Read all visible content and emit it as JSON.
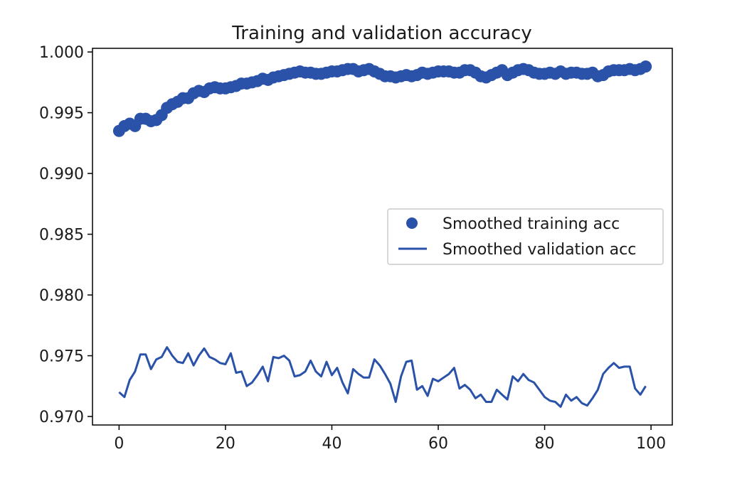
{
  "chart_data": {
    "type": "line",
    "title": "Training and validation accuracy",
    "xlabel": "",
    "ylabel": "",
    "xlim": [
      -5,
      104
    ],
    "ylim": [
      0.9693,
      1.0003
    ],
    "xticks": [
      0,
      20,
      40,
      60,
      80,
      100
    ],
    "xtick_labels": [
      "0",
      "20",
      "40",
      "60",
      "80",
      "100"
    ],
    "yticks": [
      0.97,
      0.975,
      0.98,
      0.985,
      0.99,
      0.995,
      1.0
    ],
    "ytick_labels": [
      "0.970",
      "0.975",
      "0.980",
      "0.985",
      "0.990",
      "0.995",
      "1.000"
    ],
    "grid": false,
    "legend_position": "center-right",
    "color": "#2a52a8",
    "series": [
      {
        "name": "Smoothed training acc",
        "style": "markers",
        "values": [
          0.9935,
          0.9939,
          0.9941,
          0.9939,
          0.9945,
          0.9945,
          0.9943,
          0.9944,
          0.9948,
          0.9954,
          0.9957,
          0.9959,
          0.9962,
          0.9962,
          0.9966,
          0.9968,
          0.9967,
          0.997,
          0.9971,
          0.997,
          0.997,
          0.9971,
          0.9972,
          0.9974,
          0.9974,
          0.9975,
          0.9976,
          0.9978,
          0.9977,
          0.9979,
          0.998,
          0.9981,
          0.9982,
          0.9983,
          0.9984,
          0.9983,
          0.9983,
          0.9982,
          0.9982,
          0.9983,
          0.9984,
          0.9984,
          0.9985,
          0.9986,
          0.9986,
          0.9984,
          0.9985,
          0.9986,
          0.9984,
          0.9982,
          0.998,
          0.998,
          0.9979,
          0.998,
          0.9981,
          0.998,
          0.9981,
          0.9983,
          0.9982,
          0.9983,
          0.9984,
          0.9984,
          0.9984,
          0.9983,
          0.9983,
          0.9985,
          0.9985,
          0.9983,
          0.998,
          0.9979,
          0.9981,
          0.9983,
          0.9985,
          0.9981,
          0.9983,
          0.9985,
          0.9986,
          0.9985,
          0.9983,
          0.9982,
          0.9982,
          0.9983,
          0.9982,
          0.9984,
          0.9982,
          0.9983,
          0.9983,
          0.9982,
          0.9982,
          0.9983,
          0.998,
          0.9981,
          0.9984,
          0.9985,
          0.9985,
          0.9985,
          0.9986,
          0.9985,
          0.9986,
          0.9988
        ]
      },
      {
        "name": "Smoothed validation acc",
        "style": "line",
        "values": [
          0.972,
          0.9716,
          0.973,
          0.9737,
          0.9751,
          0.9751,
          0.9739,
          0.9747,
          0.9749,
          0.9757,
          0.975,
          0.9745,
          0.9744,
          0.9752,
          0.9742,
          0.975,
          0.9756,
          0.9749,
          0.9747,
          0.9744,
          0.9743,
          0.9752,
          0.9736,
          0.9737,
          0.9725,
          0.9728,
          0.9734,
          0.9741,
          0.9729,
          0.9749,
          0.9748,
          0.975,
          0.9746,
          0.9733,
          0.9734,
          0.9737,
          0.9746,
          0.9737,
          0.9733,
          0.9745,
          0.9734,
          0.974,
          0.9728,
          0.9719,
          0.9739,
          0.9735,
          0.9732,
          0.9732,
          0.9747,
          0.9742,
          0.9735,
          0.9727,
          0.9712,
          0.9733,
          0.9745,
          0.9746,
          0.9722,
          0.9725,
          0.9717,
          0.9731,
          0.9729,
          0.9732,
          0.9735,
          0.974,
          0.9723,
          0.9726,
          0.9722,
          0.9715,
          0.9718,
          0.9712,
          0.9712,
          0.9722,
          0.9718,
          0.9714,
          0.9733,
          0.9729,
          0.9735,
          0.973,
          0.9728,
          0.9722,
          0.9716,
          0.9713,
          0.9712,
          0.9708,
          0.9718,
          0.9713,
          0.9716,
          0.9711,
          0.9709,
          0.9715,
          0.9722,
          0.9735,
          0.974,
          0.9744,
          0.974,
          0.9741,
          0.9741,
          0.9723,
          0.9718,
          0.9725
        ]
      }
    ]
  }
}
